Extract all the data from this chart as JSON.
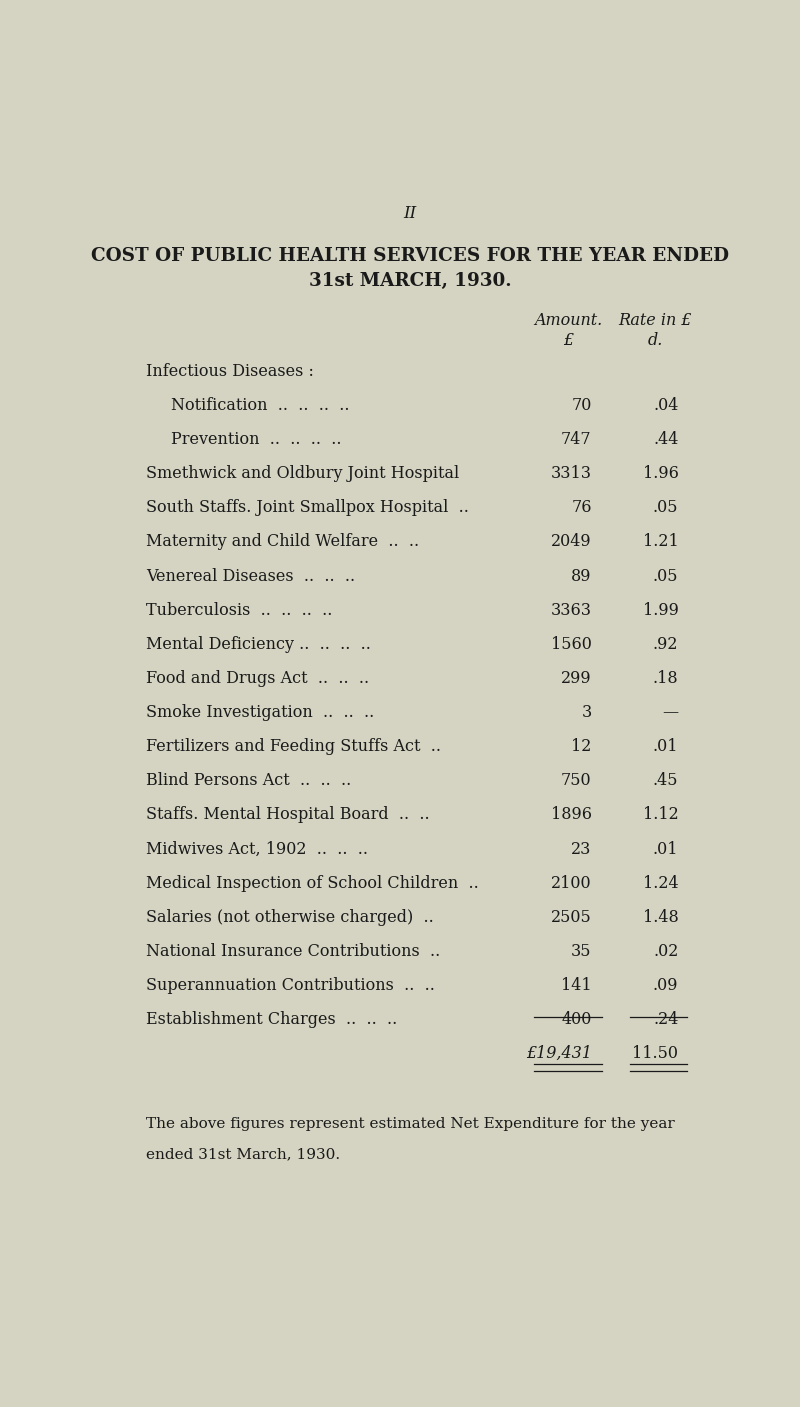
{
  "page_number": "II",
  "title_line1": "COST OF PUBLIC HEALTH SERVICES FOR THE YEAR ENDED",
  "title_line2": "31st MARCH, 1930.",
  "col_header1": "Amount.",
  "col_header2": "Rate in £",
  "col_subheader1": "£",
  "col_subheader2": "d.",
  "rows": [
    {
      "label": "Infectious Diseases :",
      "amount": "",
      "rate": "",
      "indent": 0
    },
    {
      "label": "Notification  ..  ..  ..  ..",
      "amount": "70",
      "rate": ".04",
      "indent": 1
    },
    {
      "label": "Prevention  ..  ..  ..  ..",
      "amount": "747",
      "rate": ".44",
      "indent": 1
    },
    {
      "label": "Smethwick and Oldbury Joint Hospital",
      "amount": "3313",
      "rate": "1.96",
      "indent": 0
    },
    {
      "label": "South Staffs. Joint Smallpox Hospital  ..",
      "amount": "76",
      "rate": ".05",
      "indent": 0
    },
    {
      "label": "Maternity and Child Welfare  ..  ..",
      "amount": "2049",
      "rate": "1.21",
      "indent": 0
    },
    {
      "label": "Venereal Diseases  ..  ..  ..",
      "amount": "89",
      "rate": ".05",
      "indent": 0
    },
    {
      "label": "Tuberculosis  ..  ..  ..  ..",
      "amount": "3363",
      "rate": "1.99",
      "indent": 0
    },
    {
      "label": "Mental Deficiency ..  ..  ..  ..",
      "amount": "1560",
      "rate": ".92",
      "indent": 0
    },
    {
      "label": "Food and Drugs Act  ..  ..  ..",
      "amount": "299",
      "rate": ".18",
      "indent": 0
    },
    {
      "label": "Smoke Investigation  ..  ..  ..",
      "amount": "3",
      "rate": "—",
      "indent": 0
    },
    {
      "label": "Fertilizers and Feeding Stuffs Act  ..",
      "amount": "12",
      "rate": ".01",
      "indent": 0
    },
    {
      "label": "Blind Persons Act  ..  ..  ..",
      "amount": "750",
      "rate": ".45",
      "indent": 0
    },
    {
      "label": "Staffs. Mental Hospital Board  ..  ..",
      "amount": "1896",
      "rate": "1.12",
      "indent": 0
    },
    {
      "label": "Midwives Act, 1902  ..  ..  ..",
      "amount": "23",
      "rate": ".01",
      "indent": 0
    },
    {
      "label": "Medical Inspection of School Children  ..",
      "amount": "2100",
      "rate": "1.24",
      "indent": 0
    },
    {
      "label": "Salaries (not otherwise charged)  ..",
      "amount": "2505",
      "rate": "1.48",
      "indent": 0
    },
    {
      "label": "National Insurance Contributions  ..",
      "amount": "35",
      "rate": ".02",
      "indent": 0
    },
    {
      "label": "Superannuation Contributions  ..  ..",
      "amount": "141",
      "rate": ".09",
      "indent": 0
    },
    {
      "label": "Establishment Charges  ..  ..  ..",
      "amount": "400",
      "rate": ".24",
      "indent": 0
    }
  ],
  "total_amount": "£19,431",
  "total_rate": "11.50",
  "footer_line1": "The above figures represent estimated Net Expenditure for the year",
  "footer_line2": "ended 31st March, 1930.",
  "bg_color": "#d5d4c2",
  "text_color": "#1a1a1a",
  "font_size": 11.5,
  "title_font_size": 13.2,
  "page_num_font_size": 12
}
